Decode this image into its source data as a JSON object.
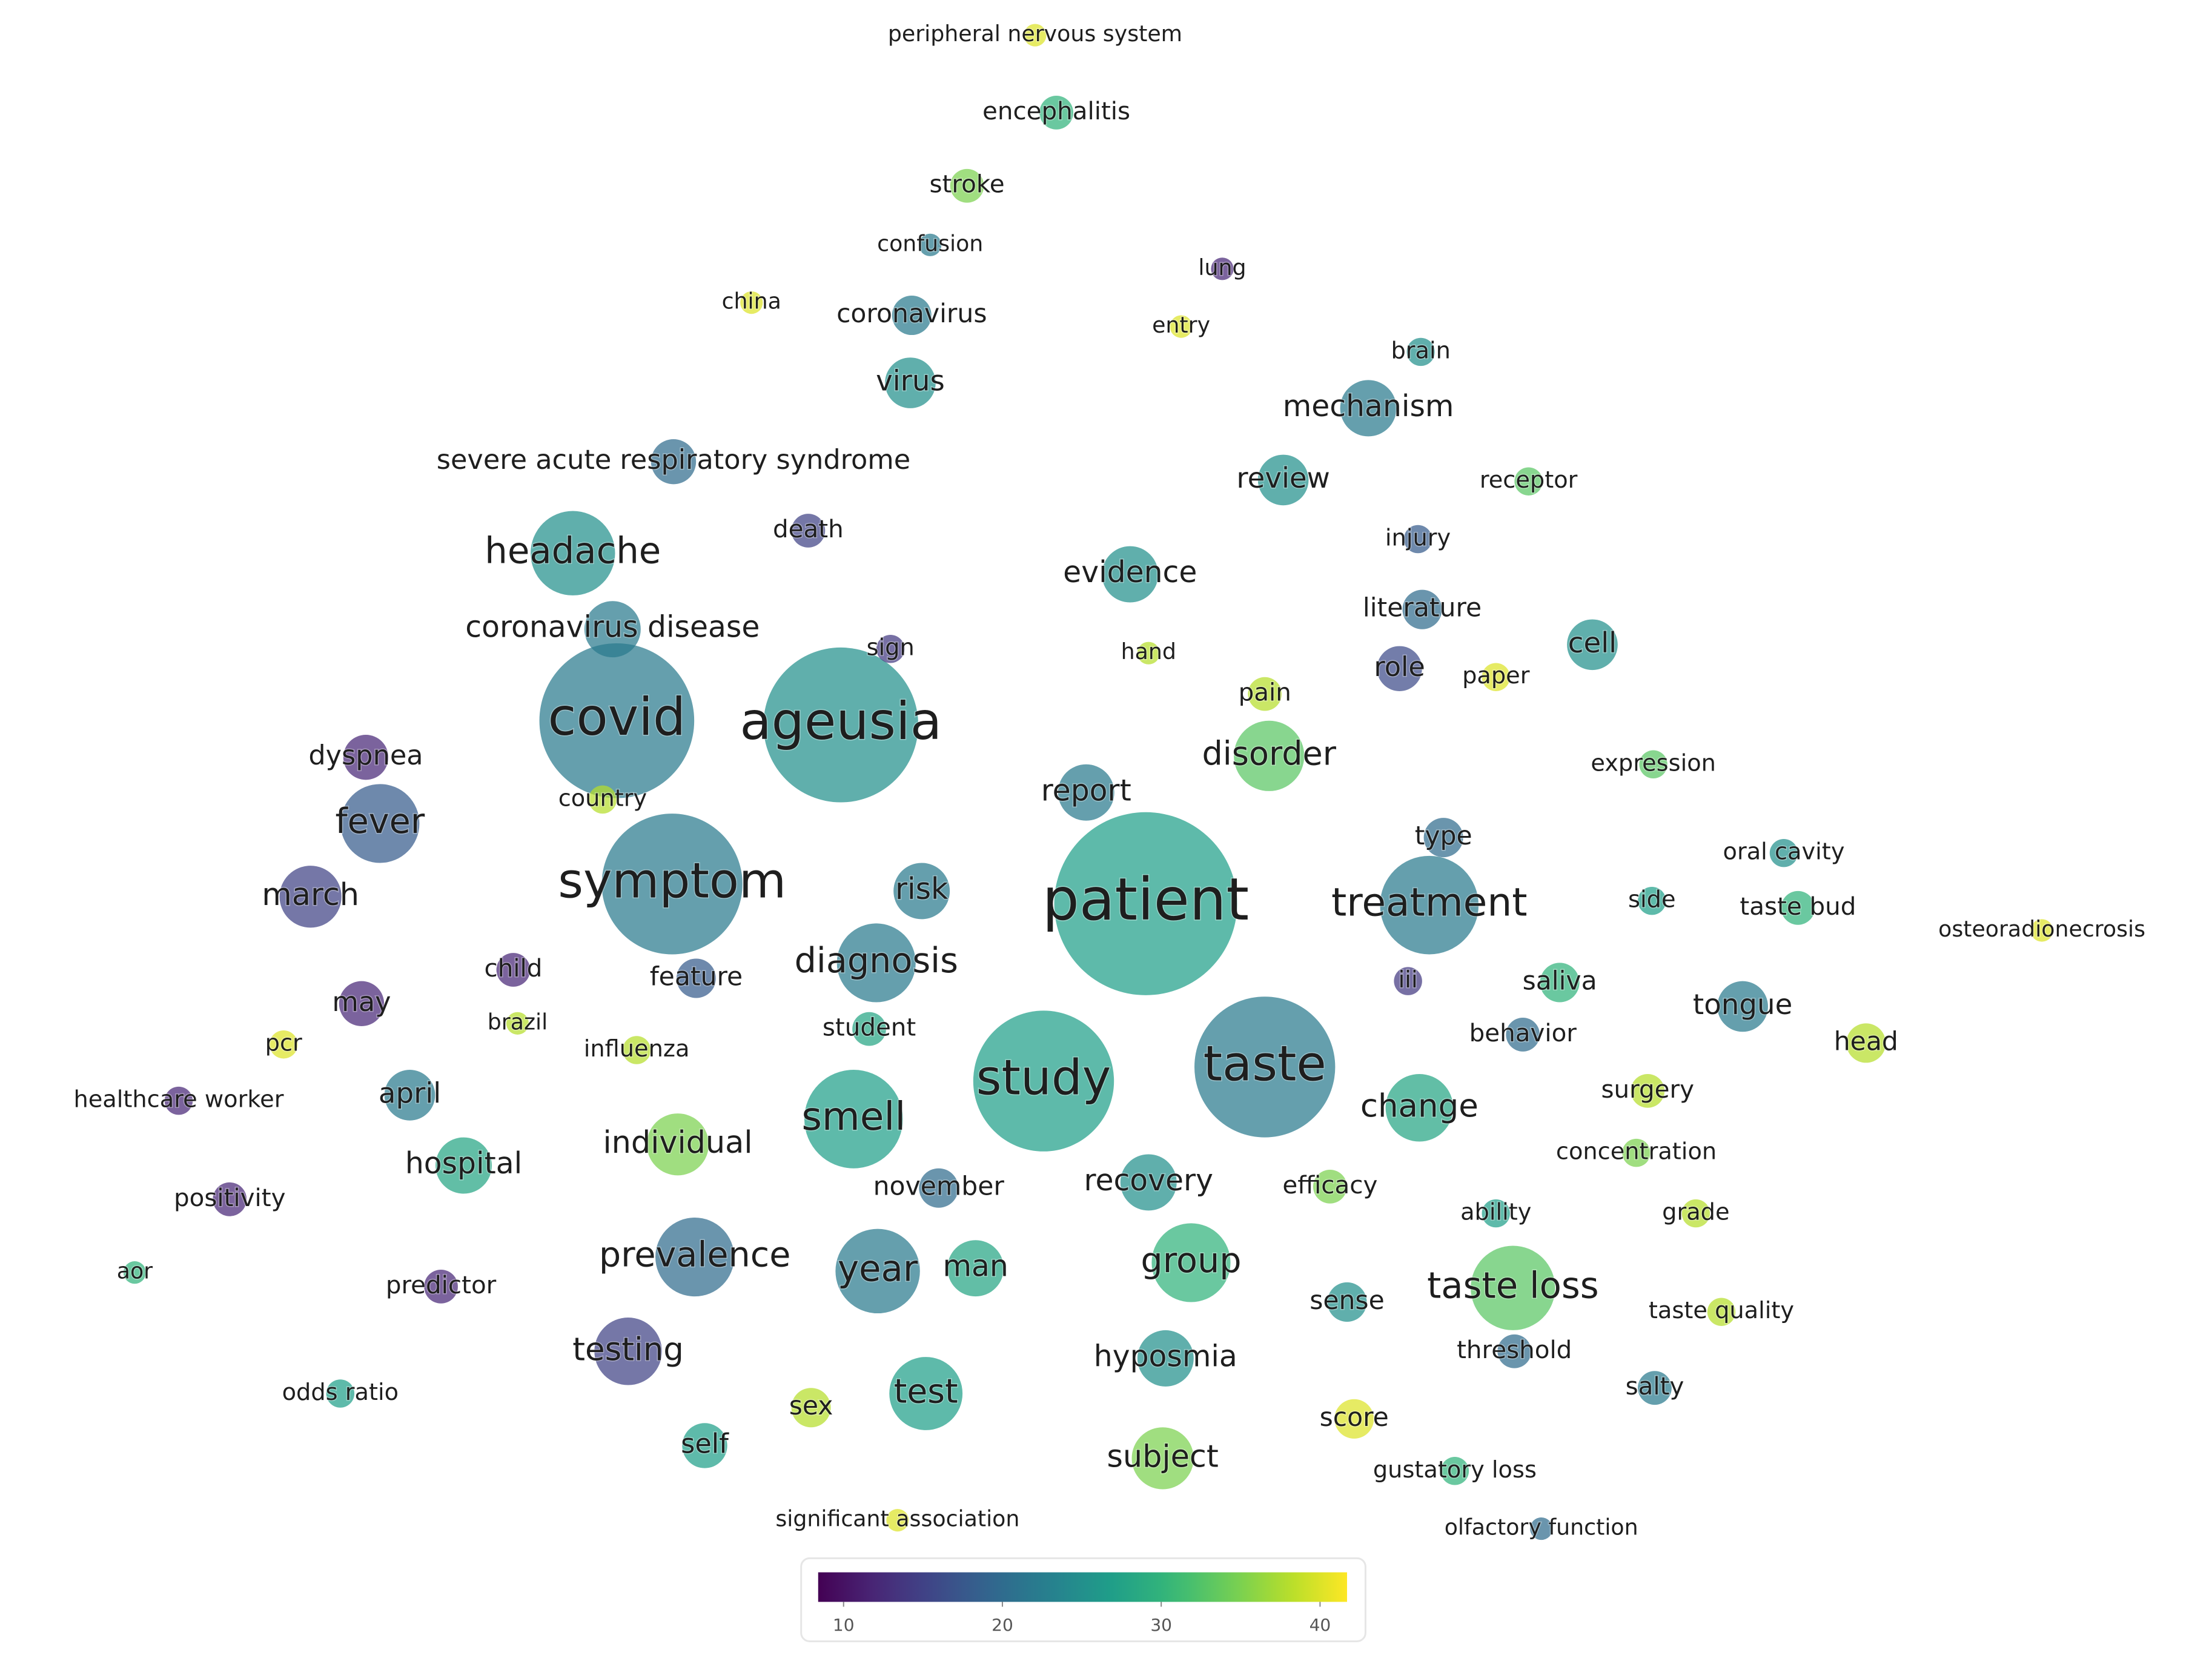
{
  "chart_data": {
    "type": "bubble",
    "colormap": "viridis",
    "opacity": 0.72,
    "xlim": [
      0,
      1560
    ],
    "ylim": [
      1180,
      0
    ],
    "points": [
      {
        "label": "peripheral nervous system",
        "x": 730,
        "y": 25,
        "size": 8,
        "value": 40
      },
      {
        "label": "encephalitis",
        "x": 745,
        "y": 80,
        "size": 12,
        "value": 30
      },
      {
        "label": "stroke",
        "x": 682,
        "y": 132,
        "size": 12,
        "value": 35
      },
      {
        "label": "confusion",
        "x": 656,
        "y": 174,
        "size": 8,
        "value": 22
      },
      {
        "label": "lung",
        "x": 862,
        "y": 191,
        "size": 8,
        "value": 12
      },
      {
        "label": "china",
        "x": 530,
        "y": 215,
        "size": 8,
        "value": 40
      },
      {
        "label": "coronavirus",
        "x": 643,
        "y": 224,
        "size": 14,
        "value": 22
      },
      {
        "label": "entry",
        "x": 833,
        "y": 232,
        "size": 8,
        "value": 40
      },
      {
        "label": "brain",
        "x": 1002,
        "y": 250,
        "size": 10,
        "value": 25
      },
      {
        "label": "virus",
        "x": 642,
        "y": 272,
        "size": 18,
        "value": 25
      },
      {
        "label": "mechanism",
        "x": 965,
        "y": 290,
        "size": 20,
        "value": 22
      },
      {
        "label": "severe acute respiratory syndrome",
        "x": 475,
        "y": 328,
        "size": 16,
        "value": 20
      },
      {
        "label": "review",
        "x": 905,
        "y": 341,
        "size": 18,
        "value": 25
      },
      {
        "label": "receptor",
        "x": 1078,
        "y": 342,
        "size": 10,
        "value": 33
      },
      {
        "label": "death",
        "x": 570,
        "y": 377,
        "size": 12,
        "value": 15
      },
      {
        "label": "headache",
        "x": 404,
        "y": 393,
        "size": 30,
        "value": 25
      },
      {
        "label": "injury",
        "x": 1000,
        "y": 383,
        "size": 10,
        "value": 18
      },
      {
        "label": "evidence",
        "x": 797,
        "y": 408,
        "size": 20,
        "value": 25
      },
      {
        "label": "literature",
        "x": 1003,
        "y": 433,
        "size": 14,
        "value": 20
      },
      {
        "label": "coronavirus disease",
        "x": 432,
        "y": 447,
        "size": 20,
        "value": 22
      },
      {
        "label": "cell",
        "x": 1123,
        "y": 458,
        "size": 18,
        "value": 25
      },
      {
        "label": "hand",
        "x": 810,
        "y": 464,
        "size": 8,
        "value": 38
      },
      {
        "label": "sign",
        "x": 628,
        "y": 461,
        "size": 10,
        "value": 14
      },
      {
        "label": "role",
        "x": 987,
        "y": 475,
        "size": 16,
        "value": 16
      },
      {
        "label": "paper",
        "x": 1055,
        "y": 481,
        "size": 10,
        "value": 40
      },
      {
        "label": "pain",
        "x": 892,
        "y": 493,
        "size": 12,
        "value": 38
      },
      {
        "label": "covid",
        "x": 435,
        "y": 512,
        "size": 55,
        "value": 22
      },
      {
        "label": "ageusia",
        "x": 593,
        "y": 515,
        "size": 55,
        "value": 25
      },
      {
        "label": "disorder",
        "x": 895,
        "y": 537,
        "size": 25,
        "value": 33
      },
      {
        "label": "dyspnea",
        "x": 258,
        "y": 538,
        "size": 16,
        "value": 12
      },
      {
        "label": "expression",
        "x": 1166,
        "y": 543,
        "size": 10,
        "value": 33
      },
      {
        "label": "report",
        "x": 766,
        "y": 563,
        "size": 20,
        "value": 22
      },
      {
        "label": "country",
        "x": 425,
        "y": 568,
        "size": 10,
        "value": 38
      },
      {
        "label": "fever",
        "x": 268,
        "y": 585,
        "size": 28,
        "value": 18
      },
      {
        "label": "type",
        "x": 1018,
        "y": 595,
        "size": 14,
        "value": 20
      },
      {
        "label": "oral cavity",
        "x": 1258,
        "y": 606,
        "size": 10,
        "value": 25
      },
      {
        "label": "symptom",
        "x": 474,
        "y": 628,
        "size": 50,
        "value": 22
      },
      {
        "label": "risk",
        "x": 650,
        "y": 633,
        "size": 20,
        "value": 22
      },
      {
        "label": "patient",
        "x": 808,
        "y": 642,
        "size": 65,
        "value": 27
      },
      {
        "label": "treatment",
        "x": 1008,
        "y": 643,
        "size": 35,
        "value": 22
      },
      {
        "label": "march",
        "x": 219,
        "y": 637,
        "size": 22,
        "value": 15
      },
      {
        "label": "side",
        "x": 1165,
        "y": 640,
        "size": 10,
        "value": 27
      },
      {
        "label": "taste bud",
        "x": 1268,
        "y": 645,
        "size": 12,
        "value": 30
      },
      {
        "label": "osteoradionecrosis",
        "x": 1440,
        "y": 661,
        "size": 8,
        "value": 40
      },
      {
        "label": "child",
        "x": 362,
        "y": 689,
        "size": 12,
        "value": 12
      },
      {
        "label": "diagnosis",
        "x": 618,
        "y": 684,
        "size": 28,
        "value": 22
      },
      {
        "label": "feature",
        "x": 491,
        "y": 695,
        "size": 14,
        "value": 18
      },
      {
        "label": "iii",
        "x": 993,
        "y": 697,
        "size": 10,
        "value": 14
      },
      {
        "label": "saliva",
        "x": 1100,
        "y": 698,
        "size": 14,
        "value": 30
      },
      {
        "label": "may",
        "x": 255,
        "y": 713,
        "size": 16,
        "value": 12
      },
      {
        "label": "tongue",
        "x": 1229,
        "y": 715,
        "size": 18,
        "value": 22
      },
      {
        "label": "brazil",
        "x": 365,
        "y": 727,
        "size": 8,
        "value": 38
      },
      {
        "label": "student",
        "x": 613,
        "y": 731,
        "size": 12,
        "value": 28
      },
      {
        "label": "behavior",
        "x": 1074,
        "y": 735,
        "size": 12,
        "value": 20
      },
      {
        "label": "pcr",
        "x": 200,
        "y": 742,
        "size": 10,
        "value": 40
      },
      {
        "label": "influenza",
        "x": 449,
        "y": 746,
        "size": 10,
        "value": 38
      },
      {
        "label": "head",
        "x": 1316,
        "y": 741,
        "size": 14,
        "value": 38
      },
      {
        "label": "study",
        "x": 736,
        "y": 768,
        "size": 50,
        "value": 27
      },
      {
        "label": "taste",
        "x": 892,
        "y": 758,
        "size": 50,
        "value": 22
      },
      {
        "label": "april",
        "x": 289,
        "y": 778,
        "size": 18,
        "value": 22
      },
      {
        "label": "healthcare worker",
        "x": 126,
        "y": 782,
        "size": 10,
        "value": 12
      },
      {
        "label": "surgery",
        "x": 1162,
        "y": 775,
        "size": 12,
        "value": 38
      },
      {
        "label": "change",
        "x": 1001,
        "y": 787,
        "size": 24,
        "value": 28
      },
      {
        "label": "smell",
        "x": 602,
        "y": 795,
        "size": 35,
        "value": 27
      },
      {
        "label": "individual",
        "x": 478,
        "y": 813,
        "size": 22,
        "value": 35
      },
      {
        "label": "concentration",
        "x": 1154,
        "y": 819,
        "size": 10,
        "value": 35
      },
      {
        "label": "hospital",
        "x": 327,
        "y": 828,
        "size": 20,
        "value": 28
      },
      {
        "label": "recovery",
        "x": 810,
        "y": 840,
        "size": 20,
        "value": 25
      },
      {
        "label": "november",
        "x": 662,
        "y": 844,
        "size": 14,
        "value": 20
      },
      {
        "label": "efficacy",
        "x": 938,
        "y": 843,
        "size": 12,
        "value": 35
      },
      {
        "label": "positivity",
        "x": 162,
        "y": 852,
        "size": 12,
        "value": 12
      },
      {
        "label": "ability",
        "x": 1055,
        "y": 862,
        "size": 10,
        "value": 27
      },
      {
        "label": "grade",
        "x": 1196,
        "y": 862,
        "size": 10,
        "value": 38
      },
      {
        "label": "prevalence",
        "x": 490,
        "y": 893,
        "size": 28,
        "value": 20
      },
      {
        "label": "group",
        "x": 840,
        "y": 897,
        "size": 28,
        "value": 30
      },
      {
        "label": "year",
        "x": 619,
        "y": 903,
        "size": 30,
        "value": 22
      },
      {
        "label": "man",
        "x": 688,
        "y": 901,
        "size": 20,
        "value": 28
      },
      {
        "label": "aor",
        "x": 95,
        "y": 904,
        "size": 8,
        "value": 30
      },
      {
        "label": "taste loss",
        "x": 1067,
        "y": 915,
        "size": 30,
        "value": 33
      },
      {
        "label": "predictor",
        "x": 311,
        "y": 914,
        "size": 12,
        "value": 12
      },
      {
        "label": "sense",
        "x": 950,
        "y": 925,
        "size": 14,
        "value": 25
      },
      {
        "label": "taste quality",
        "x": 1214,
        "y": 932,
        "size": 10,
        "value": 38
      },
      {
        "label": "threshold",
        "x": 1068,
        "y": 960,
        "size": 12,
        "value": 20
      },
      {
        "label": "testing",
        "x": 443,
        "y": 960,
        "size": 24,
        "value": 15
      },
      {
        "label": "hyposmia",
        "x": 822,
        "y": 965,
        "size": 20,
        "value": 25
      },
      {
        "label": "odds ratio",
        "x": 240,
        "y": 990,
        "size": 10,
        "value": 27
      },
      {
        "label": "test",
        "x": 653,
        "y": 990,
        "size": 26,
        "value": 27
      },
      {
        "label": "salty",
        "x": 1167,
        "y": 986,
        "size": 12,
        "value": 22
      },
      {
        "label": "sex",
        "x": 572,
        "y": 1000,
        "size": 14,
        "value": 38
      },
      {
        "label": "score",
        "x": 955,
        "y": 1008,
        "size": 14,
        "value": 40
      },
      {
        "label": "self",
        "x": 497,
        "y": 1027,
        "size": 16,
        "value": 27
      },
      {
        "label": "subject",
        "x": 820,
        "y": 1036,
        "size": 22,
        "value": 35
      },
      {
        "label": "gustatory loss",
        "x": 1026,
        "y": 1045,
        "size": 10,
        "value": 30
      },
      {
        "label": "significant association",
        "x": 633,
        "y": 1080,
        "size": 8,
        "value": 40
      },
      {
        "label": "olfactory function",
        "x": 1087,
        "y": 1086,
        "size": 8,
        "value": 20
      }
    ],
    "colorbar": {
      "clim": [
        8.4,
        41.7
      ],
      "ticks": [
        10,
        20,
        30,
        40
      ]
    }
  }
}
